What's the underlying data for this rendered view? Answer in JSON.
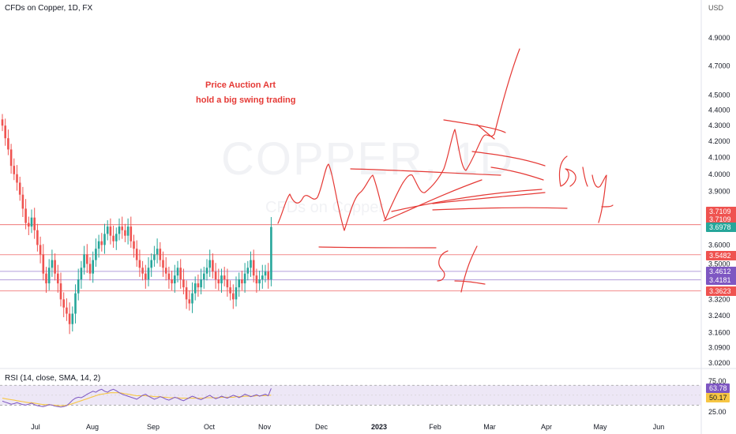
{
  "header": {
    "symbol_title": "CFDs on Copper, 1D, FX",
    "currency": "USD"
  },
  "watermark": {
    "main": "COPPER, 1D",
    "sub": "CFDs on Copper"
  },
  "annotations": {
    "title_line1": "Price Auction Art",
    "title_line2": "hold a big swing trading",
    "handwritten_buy": "Buy",
    "handwritten_sl": "sl"
  },
  "colors": {
    "up": "#26a69a",
    "down": "#ef5350",
    "hline_red": "#f28b8b",
    "hline_purple": "#b39ddb",
    "drawing_red": "#e53935",
    "rsi_line": "#7e57c2",
    "rsi_sma": "#f7c644",
    "rsi_band": "#ede7f6"
  },
  "chart_data": {
    "type": "candlestick",
    "title": "CFDs on Copper, 1D, FX",
    "y_axis": {
      "unit": "USD",
      "scale": "log",
      "ticks": [
        "4.9000",
        "4.7000",
        "4.5000",
        "4.4000",
        "4.3000",
        "4.2000",
        "4.1000",
        "4.0000",
        "3.9000",
        "3.6000",
        "3.5000",
        "3.3200",
        "3.2400",
        "3.1600",
        "3.0900",
        "3.0200"
      ]
    },
    "x_axis": {
      "ticks": [
        "Jul",
        "Aug",
        "Sep",
        "Oct",
        "Nov",
        "Dec",
        "2023",
        "Feb",
        "Mar",
        "Apr",
        "May",
        "Jun"
      ]
    },
    "horizontal_levels": [
      {
        "value": 3.7109,
        "label": "3.7109",
        "color": "#ef5350"
      },
      {
        "value": 3.7109,
        "label": "3.7109",
        "color": "#ef5350"
      },
      {
        "value": 3.6978,
        "label": "3.6978",
        "color": "#26a69a"
      },
      {
        "value": 3.5482,
        "label": "3.5482",
        "color": "#ef5350"
      },
      {
        "value": 3.4612,
        "label": "3.4612",
        "color": "#7e57c2"
      },
      {
        "value": 3.4181,
        "label": "3.4181",
        "color": "#7e57c2"
      },
      {
        "value": 3.3623,
        "label": "3.3623",
        "color": "#ef5350"
      }
    ],
    "closes": [
      4.3,
      4.22,
      4.15,
      4.05,
      4.0,
      3.95,
      3.88,
      3.8,
      3.72,
      3.7,
      3.75,
      3.68,
      3.6,
      3.55,
      3.45,
      3.4,
      3.48,
      3.52,
      3.45,
      3.4,
      3.32,
      3.28,
      3.25,
      3.2,
      3.25,
      3.35,
      3.42,
      3.48,
      3.55,
      3.5,
      3.45,
      3.52,
      3.58,
      3.62,
      3.6,
      3.66,
      3.7,
      3.65,
      3.62,
      3.66,
      3.7,
      3.68,
      3.65,
      3.7,
      3.62,
      3.58,
      3.52,
      3.48,
      3.45,
      3.42,
      3.48,
      3.52,
      3.55,
      3.58,
      3.52,
      3.48,
      3.45,
      3.42,
      3.4,
      3.44,
      3.48,
      3.42,
      3.38,
      3.32,
      3.3,
      3.35,
      3.4,
      3.38,
      3.42,
      3.45,
      3.48,
      3.52,
      3.46,
      3.42,
      3.4,
      3.44,
      3.42,
      3.38,
      3.35,
      3.32,
      3.38,
      3.42,
      3.4,
      3.45,
      3.48,
      3.52,
      3.44,
      3.4,
      3.42,
      3.44,
      3.46,
      3.42,
      3.6978
    ],
    "rsi": {
      "label": "RSI (14, close, SMA, 14, 2)",
      "rsi_value": "63.78",
      "sma_value": "50.17",
      "ticks": [
        "75.00",
        "25.00"
      ],
      "band": [
        30,
        70
      ],
      "values": [
        38,
        36,
        34,
        32,
        33,
        35,
        33,
        31,
        30,
        32,
        34,
        31,
        29,
        28,
        27,
        29,
        31,
        30,
        28,
        27,
        26,
        27,
        29,
        34,
        40,
        44,
        46,
        45,
        48,
        52,
        55,
        58,
        56,
        60,
        62,
        58,
        56,
        60,
        62,
        59,
        55,
        52,
        50,
        48,
        46,
        44,
        42,
        46,
        50,
        52,
        48,
        45,
        42,
        44,
        47,
        45,
        42,
        40,
        43,
        46,
        44,
        41,
        39,
        42,
        45,
        48,
        46,
        43,
        41,
        44,
        47,
        50,
        46,
        43,
        45,
        48,
        46,
        44,
        47,
        50,
        48,
        45,
        48,
        52,
        50,
        47,
        49,
        51,
        48,
        50,
        52,
        49,
        63.78
      ],
      "sma": [
        44,
        43,
        42,
        41,
        40,
        39,
        38,
        37,
        36,
        35,
        35,
        34,
        33,
        32,
        31,
        31,
        31,
        30,
        30,
        29,
        29,
        29,
        30,
        31,
        33,
        35,
        37,
        39,
        41,
        43,
        45,
        47,
        49,
        51,
        52,
        53,
        54,
        55,
        55,
        55,
        55,
        54,
        53,
        52,
        51,
        50,
        49,
        49,
        49,
        49,
        48,
        48,
        47,
        47,
        47,
        46,
        46,
        45,
        45,
        45,
        45,
        44,
        44,
        44,
        44,
        44,
        44,
        44,
        44,
        44,
        45,
        45,
        45,
        45,
        45,
        46,
        46,
        46,
        46,
        46,
        47,
        47,
        47,
        48,
        48,
        48,
        48,
        49,
        49,
        49,
        49,
        50,
        50.17
      ]
    }
  }
}
